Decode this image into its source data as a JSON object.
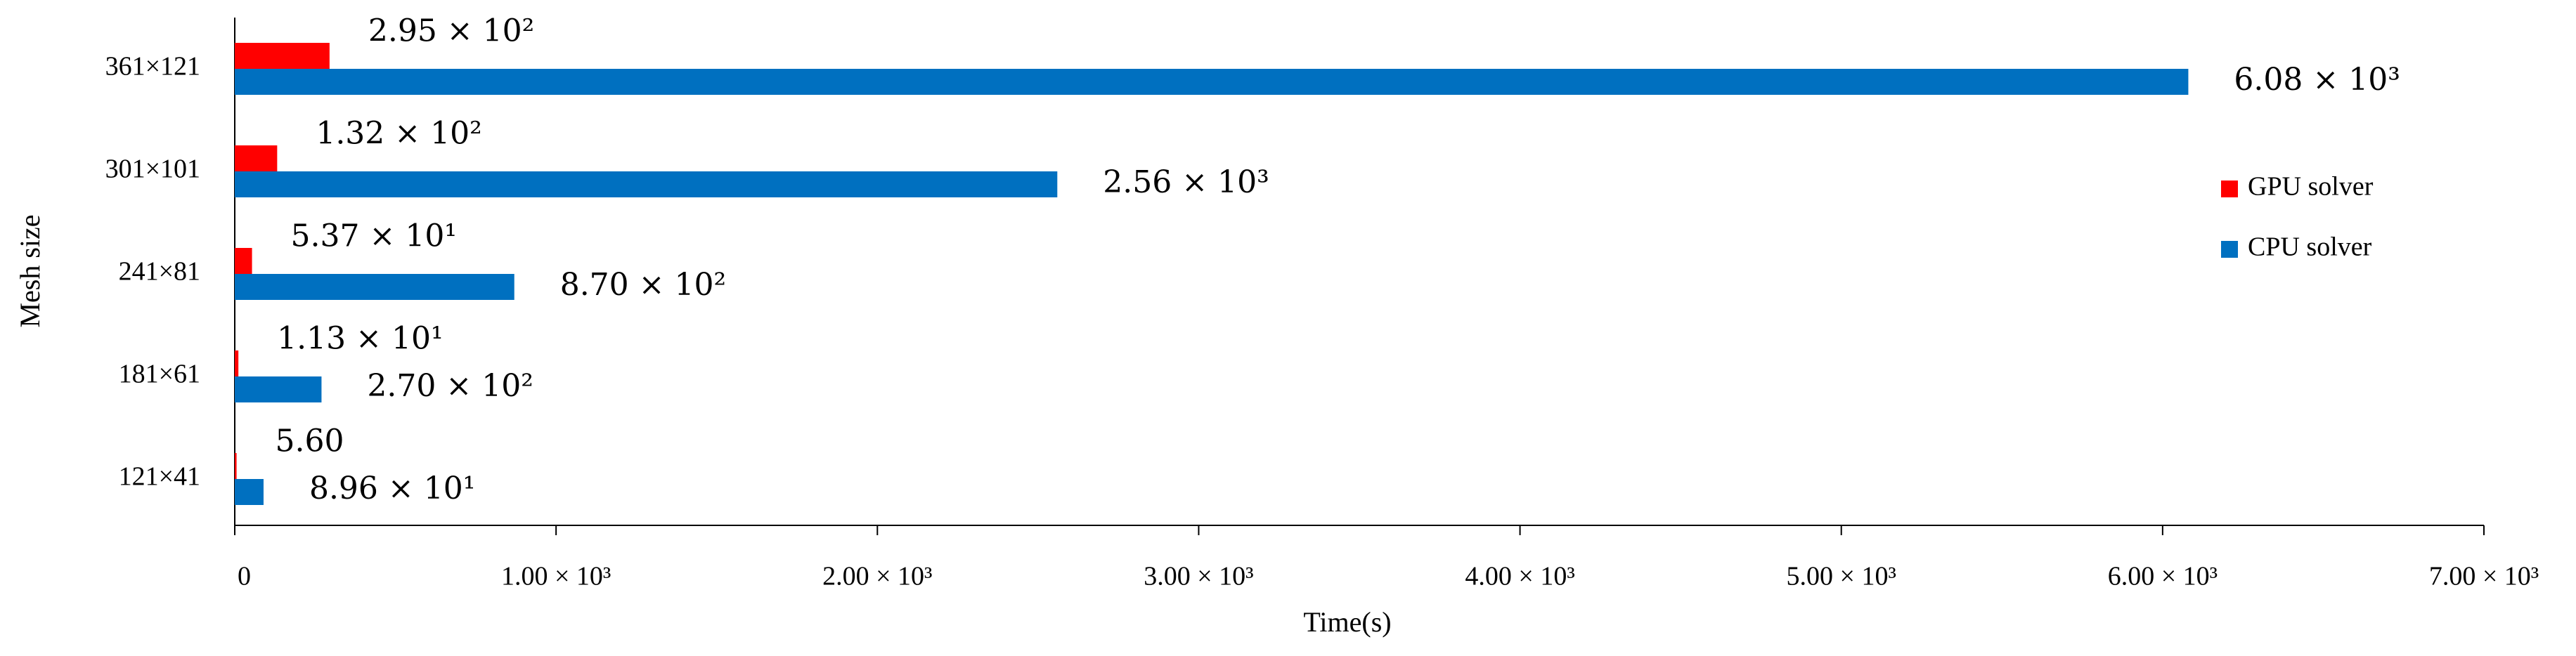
{
  "chart_data": {
    "type": "hbar",
    "xlabel": "Time(s)",
    "ylabel": "Mesh size",
    "categories": [
      "121×41",
      "181×61",
      "241×81",
      "301×101",
      "361×121"
    ],
    "series": [
      {
        "name": "GPU solver",
        "color": "#ff0000",
        "values": [
          5.6,
          11.3,
          53.7,
          132,
          295
        ],
        "value_labels": [
          "5.60",
          "1.13 × 10¹",
          "5.37 × 10¹",
          "1.32 × 10²",
          "2.95 × 10²"
        ]
      },
      {
        "name": "CPU solver",
        "color": "#0070c0",
        "values": [
          89.6,
          270,
          870,
          2560,
          6080
        ],
        "value_labels": [
          "8.96 × 10¹",
          "2.70 × 10²",
          "8.70 × 10²",
          "2.56 × 10³",
          "6.08 × 10³"
        ]
      }
    ],
    "xlim": [
      0,
      7000
    ],
    "xticks": [
      0,
      {
        "value": 1000,
        "label": "1.00 × 10³"
      },
      {
        "value": 2000,
        "label": "2.00 × 10³"
      },
      {
        "value": 3000,
        "label": "3.00 × 10³"
      },
      {
        "value": 4000,
        "label": "4.00 × 10³"
      },
      {
        "value": 5000,
        "label": "5.00 × 10³"
      },
      {
        "value": 6000,
        "label": "6.00 × 10³"
      },
      {
        "value": 7000,
        "label": "7.00 × 10³"
      }
    ],
    "legend": "right"
  }
}
